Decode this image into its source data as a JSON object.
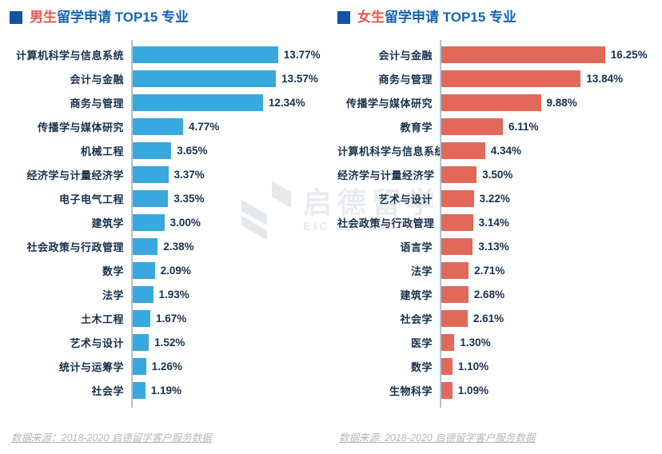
{
  "colors": {
    "male_bar": "#38a8de",
    "female_bar": "#e0695a",
    "title_blue": "#1463b5",
    "title_red": "#e5564b",
    "marker_blue": "#1254a6",
    "text_navy": "#17304e",
    "axis_line": "#aac4da",
    "source_gray": "#b6b6b6",
    "watermark_gray": "#e8ebee"
  },
  "watermark": {
    "cn": "启德留学",
    "en": "EIC EDUCATION"
  },
  "chart_data": [
    {
      "type": "bar",
      "orientation": "horizontal",
      "title": "男生留学申请 TOP15 专业",
      "title_highlight": "男生",
      "title_rest": "留学申请 TOP15 专业",
      "bar_color": "#38a8de",
      "value_format": "percent",
      "xlim": [
        0,
        15
      ],
      "grid": false,
      "categories": [
        "计算机科学与信息系统",
        "会计与金融",
        "商务与管理",
        "传播学与媒体研究",
        "机械工程",
        "经济学与计量经济学",
        "电子电气工程",
        "建筑学",
        "社会政策与行政管理",
        "数学",
        "法学",
        "土木工程",
        "艺术与设计",
        "统计与运筹学",
        "社会学"
      ],
      "values": [
        13.77,
        13.57,
        12.34,
        4.77,
        3.65,
        3.37,
        3.35,
        3.0,
        2.38,
        2.09,
        1.93,
        1.67,
        1.52,
        1.26,
        1.19
      ],
      "value_labels": [
        "13.77%",
        "13.57%",
        "12.34%",
        "4.77%",
        "3.65%",
        "3.37%",
        "3.35%",
        "3.00%",
        "2.38%",
        "2.09%",
        "1.93%",
        "1.67%",
        "1.52%",
        "1.26%",
        "1.19%"
      ],
      "source_note": "数据来源：2018-2020 启德留学客户服务数据"
    },
    {
      "type": "bar",
      "orientation": "horizontal",
      "title": "女生留学申请 TOP15 专业",
      "title_highlight": "女生",
      "title_rest": "留学申请 TOP15 专业",
      "bar_color": "#e0695a",
      "value_format": "percent",
      "xlim": [
        0,
        17
      ],
      "grid": false,
      "categories": [
        "会计与金融",
        "商务与管理",
        "传播学与媒体研究",
        "教育学",
        "计算机科学与信息系统",
        "经济学与计量经济学",
        "艺术与设计",
        "社会政策与行政管理",
        "语言学",
        "法学",
        "建筑学",
        "社会学",
        "医学",
        "数学",
        "生物科学"
      ],
      "values": [
        16.25,
        13.84,
        9.88,
        6.11,
        4.34,
        3.5,
        3.22,
        3.14,
        3.13,
        2.71,
        2.68,
        2.61,
        1.3,
        1.1,
        1.09
      ],
      "value_labels": [
        "16.25%",
        "13.84%",
        "9.88%",
        "6.11%",
        "4.34%",
        "3.50%",
        "3.22%",
        "3.14%",
        "3.13%",
        "2.71%",
        "2.68%",
        "2.61%",
        "1.30%",
        "1.10%",
        "1.09%"
      ],
      "source_note": "数据来源: 2018-2020 启德留学客户服务数据"
    }
  ]
}
